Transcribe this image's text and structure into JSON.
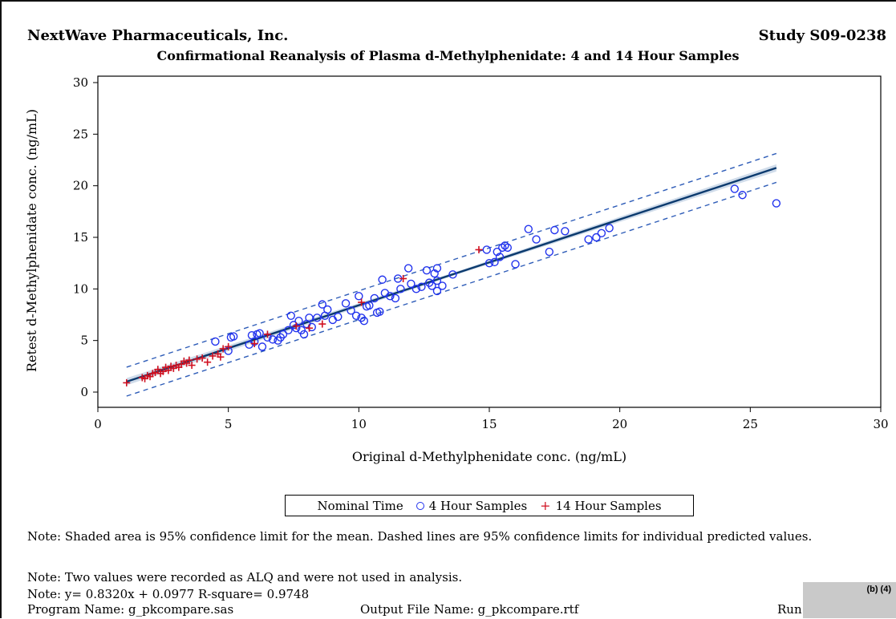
{
  "header": {
    "company": "NextWave Pharmaceuticals, Inc.",
    "study": "Study S09-0238",
    "title": "Confirmational Reanalysis of Plasma d-Methylphenidate: 4 and 14 Hour Samples"
  },
  "chart_data": {
    "type": "scatter",
    "xlabel": "Original d-Methylphenidate conc. (ng/mL)",
    "ylabel": "Retest d-Methylphenidate conc. (ng/mL)",
    "xlim": [
      0,
      30
    ],
    "ylim": [
      0,
      30
    ],
    "xticks": [
      0,
      5,
      10,
      15,
      20,
      25,
      30
    ],
    "yticks": [
      0,
      5,
      10,
      15,
      20,
      25,
      30
    ],
    "grid": false,
    "legend_placement": "bottom",
    "legend_title": "Nominal Time",
    "regression": {
      "slope": 0.832,
      "intercept": 0.0977,
      "r_square": 0.9748,
      "x_range": [
        1.1,
        26.0
      ]
    },
    "mean_ci_band_halfwidth": [
      0.15,
      0.35
    ],
    "prediction_interval_halfwidth": 1.4,
    "series": [
      {
        "name": "4 Hour Samples",
        "marker": "circle",
        "color": "#2233ee",
        "points": [
          [
            4.5,
            4.9
          ],
          [
            5.0,
            4.0
          ],
          [
            5.1,
            5.3
          ],
          [
            5.2,
            5.4
          ],
          [
            5.8,
            4.6
          ],
          [
            5.9,
            5.5
          ],
          [
            6.0,
            4.9
          ],
          [
            6.1,
            5.6
          ],
          [
            6.2,
            5.7
          ],
          [
            6.3,
            4.4
          ],
          [
            6.5,
            5.3
          ],
          [
            6.7,
            5.1
          ],
          [
            6.9,
            5.0
          ],
          [
            7.0,
            5.3
          ],
          [
            7.1,
            5.6
          ],
          [
            7.3,
            6.0
          ],
          [
            7.4,
            7.4
          ],
          [
            7.5,
            6.5
          ],
          [
            7.6,
            6.2
          ],
          [
            7.7,
            6.9
          ],
          [
            7.8,
            6.0
          ],
          [
            7.9,
            5.6
          ],
          [
            8.0,
            6.6
          ],
          [
            8.1,
            7.2
          ],
          [
            8.2,
            6.3
          ],
          [
            8.4,
            7.2
          ],
          [
            8.6,
            8.5
          ],
          [
            8.7,
            7.4
          ],
          [
            8.8,
            8.0
          ],
          [
            9.0,
            7.0
          ],
          [
            9.2,
            7.3
          ],
          [
            9.5,
            8.6
          ],
          [
            9.7,
            7.9
          ],
          [
            9.9,
            7.4
          ],
          [
            10.0,
            9.3
          ],
          [
            10.1,
            7.2
          ],
          [
            10.2,
            6.9
          ],
          [
            10.3,
            8.3
          ],
          [
            10.4,
            8.4
          ],
          [
            10.6,
            9.1
          ],
          [
            10.7,
            7.7
          ],
          [
            10.8,
            7.8
          ],
          [
            10.9,
            10.9
          ],
          [
            11.0,
            9.6
          ],
          [
            11.2,
            9.3
          ],
          [
            11.4,
            9.1
          ],
          [
            11.5,
            11.0
          ],
          [
            11.6,
            10.0
          ],
          [
            11.9,
            12.0
          ],
          [
            12.0,
            10.5
          ],
          [
            12.2,
            10.0
          ],
          [
            12.4,
            10.2
          ],
          [
            12.6,
            11.8
          ],
          [
            12.7,
            10.6
          ],
          [
            12.8,
            10.3
          ],
          [
            12.9,
            11.5
          ],
          [
            13.0,
            12.0
          ],
          [
            13.0,
            10.8
          ],
          [
            13.0,
            9.8
          ],
          [
            13.2,
            10.3
          ],
          [
            13.6,
            11.4
          ],
          [
            14.9,
            13.8
          ],
          [
            15.0,
            12.5
          ],
          [
            15.2,
            12.6
          ],
          [
            15.3,
            13.6
          ],
          [
            15.4,
            13.1
          ],
          [
            15.5,
            14.0
          ],
          [
            15.6,
            14.2
          ],
          [
            15.7,
            14.0
          ],
          [
            16.0,
            12.4
          ],
          [
            16.5,
            15.8
          ],
          [
            16.8,
            14.8
          ],
          [
            17.3,
            13.6
          ],
          [
            17.5,
            15.7
          ],
          [
            17.9,
            15.6
          ],
          [
            18.8,
            14.8
          ],
          [
            19.1,
            15.0
          ],
          [
            19.3,
            15.4
          ],
          [
            19.6,
            15.9
          ],
          [
            24.4,
            19.7
          ],
          [
            24.7,
            19.1
          ],
          [
            26.0,
            18.3
          ]
        ]
      },
      {
        "name": "14 Hour Samples",
        "marker": "plus",
        "color": "#d01020",
        "points": [
          [
            1.1,
            0.9
          ],
          [
            1.7,
            1.4
          ],
          [
            1.8,
            1.3
          ],
          [
            1.9,
            1.6
          ],
          [
            2.0,
            1.5
          ],
          [
            2.1,
            1.8
          ],
          [
            2.2,
            1.9
          ],
          [
            2.3,
            2.2
          ],
          [
            2.4,
            1.8
          ],
          [
            2.5,
            2.0
          ],
          [
            2.6,
            2.4
          ],
          [
            2.7,
            2.1
          ],
          [
            2.8,
            2.5
          ],
          [
            2.9,
            2.3
          ],
          [
            3.0,
            2.6
          ],
          [
            3.1,
            2.4
          ],
          [
            3.2,
            2.7
          ],
          [
            3.3,
            3.0
          ],
          [
            3.4,
            2.8
          ],
          [
            3.5,
            3.1
          ],
          [
            3.6,
            2.6
          ],
          [
            3.8,
            3.2
          ],
          [
            4.0,
            3.3
          ],
          [
            4.2,
            2.9
          ],
          [
            4.4,
            3.5
          ],
          [
            4.6,
            3.7
          ],
          [
            4.7,
            3.4
          ],
          [
            4.8,
            4.2
          ],
          [
            5.0,
            4.4
          ],
          [
            6.0,
            4.7
          ],
          [
            6.5,
            5.6
          ],
          [
            7.6,
            6.4
          ],
          [
            8.1,
            6.2
          ],
          [
            8.6,
            6.6
          ],
          [
            10.1,
            8.7
          ],
          [
            11.7,
            11.0
          ],
          [
            14.6,
            13.8
          ]
        ]
      }
    ]
  },
  "notes": {
    "note1": "Note: Shaded area is 95% confidence limit for the mean. Dashed lines are 95% confidence limits for individual predicted values.",
    "note2": "Note: Two values were recorded as ALQ and were not used in analysis.",
    "note3": "Note: y= 0.8320x + 0.0977 R-square= 0.9748"
  },
  "footer": {
    "program": "Program Name: g_pkcompare.sas",
    "output_file": "Output File Name: g_pkcompare.rtf",
    "run_by": "Run by:",
    "redaction_code": "(b) (4)"
  },
  "colors": {
    "fit_line": "#0b3a6e",
    "band": "#a9bfd8",
    "dashed": "#2f5db8"
  }
}
